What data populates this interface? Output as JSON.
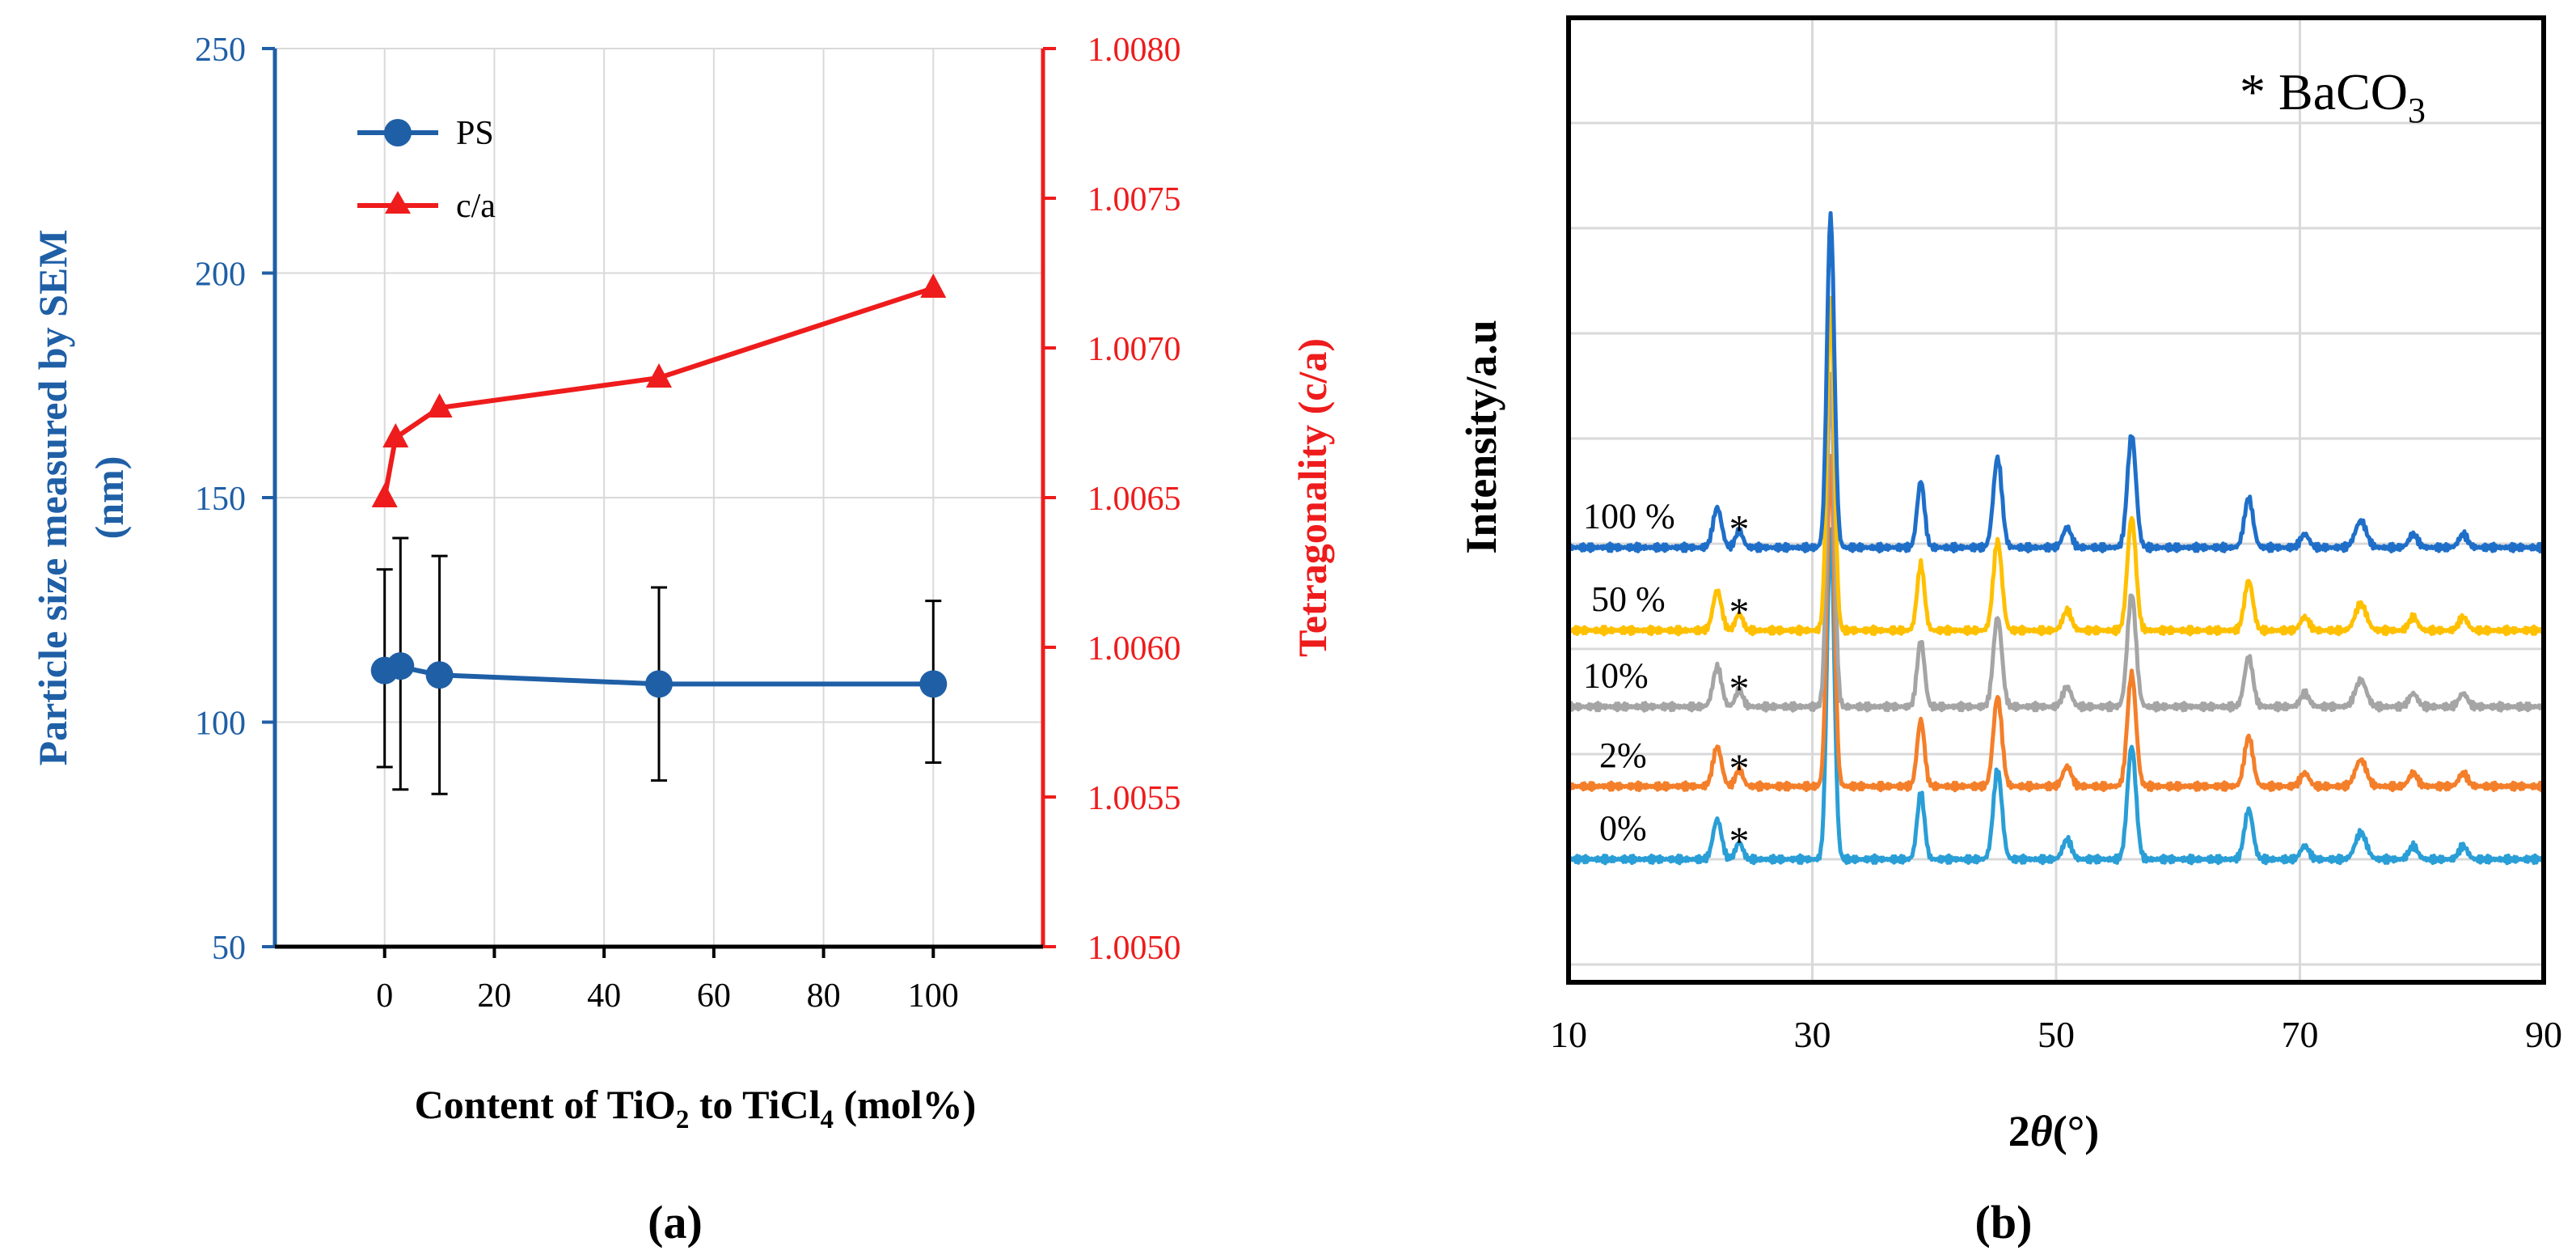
{
  "panel_a_label": "(a)",
  "panel_b_label": "(b)",
  "colors": {
    "ps": "#1F5FA6",
    "ca": "#EE1C1C",
    "err": "#000000",
    "s0": "#2A9ED6",
    "s2": "#F47F2A",
    "s10": "#A5A5A5",
    "s50": "#FFC000",
    "s100": "#1F6FC9"
  },
  "chart_data": [
    {
      "type": "line",
      "title": "",
      "xlabel": "Content of TiO2 to TiCl4 (mol%)",
      "xlabel_parts": {
        "a": "Content of TiO",
        "sub1": "2",
        "b": " to  TiCl",
        "sub2": "4",
        "c": " (mol%)"
      },
      "ylabel": [
        "Particle size measured by SEM",
        "(nm)"
      ],
      "y2label": "Tetragonality (c/a)",
      "xlim": [
        -20,
        120
      ],
      "x_ticks": [
        0,
        20,
        40,
        60,
        80,
        100
      ],
      "ylim": [
        50,
        250
      ],
      "y_ticks": [
        50,
        100,
        150,
        200,
        250
      ],
      "y2lim": [
        1.005,
        1.008
      ],
      "y2_ticks": [
        "1.0050",
        "1.0055",
        "1.0060",
        "1.0065",
        "1.0070",
        "1.0075",
        "1.0080"
      ],
      "legend": {
        "position": "top-left",
        "entries": [
          "PS",
          "c/a"
        ]
      },
      "series": [
        {
          "name": "PS",
          "axis": "left",
          "x": [
            0,
            2,
            10,
            50,
            100
          ],
          "values": [
            111.5,
            112.5,
            110.5,
            108.5,
            108.5
          ],
          "err_hi": [
            134,
            141,
            137,
            130,
            127
          ],
          "err_lo": [
            90,
            85,
            84,
            87,
            91
          ]
        },
        {
          "name": "c/a",
          "axis": "right",
          "x": [
            0,
            2,
            10,
            50,
            100
          ],
          "values": [
            1.0065,
            1.0067,
            1.0068,
            1.0069,
            1.0072
          ]
        }
      ]
    },
    {
      "type": "line",
      "title": "",
      "xlabel": "2θ(°)",
      "xlabel_parts": {
        "a": "2",
        "theta": "θ",
        "b": "(°)"
      },
      "ylabel": "Intensity/a.u",
      "xlim": [
        10,
        90
      ],
      "x_ticks": [
        10,
        30,
        50,
        70,
        90
      ],
      "annotation": {
        "a": "* BaCO",
        "sub": "3"
      },
      "peaks": [
        {
          "pos": 22.2,
          "width": 0.35,
          "rel": 0.12
        },
        {
          "pos": 24.0,
          "width": 0.3,
          "rel": 0.05
        },
        {
          "pos": 31.5,
          "width": 0.3,
          "rel": 1.0
        },
        {
          "pos": 38.9,
          "width": 0.3,
          "rel": 0.2
        },
        {
          "pos": 45.2,
          "width": 0.35,
          "rel": 0.27
        },
        {
          "pos": 50.9,
          "width": 0.35,
          "rel": 0.06
        },
        {
          "pos": 56.2,
          "width": 0.35,
          "rel": 0.34
        },
        {
          "pos": 65.8,
          "width": 0.35,
          "rel": 0.15
        },
        {
          "pos": 70.4,
          "width": 0.35,
          "rel": 0.04
        },
        {
          "pos": 75.0,
          "width": 0.45,
          "rel": 0.08
        },
        {
          "pos": 79.3,
          "width": 0.35,
          "rel": 0.04
        },
        {
          "pos": 83.4,
          "width": 0.35,
          "rel": 0.04
        }
      ],
      "series": [
        {
          "name": "0%",
          "label": "0%",
          "color_key": "s0",
          "baseline": 0.0,
          "scale": 1.0
        },
        {
          "name": "2%",
          "label": "2%",
          "color_key": "s2",
          "baseline": 0.22,
          "scale": 1.0
        },
        {
          "name": "10%",
          "label": "10%",
          "color_key": "s10",
          "baseline": 0.46,
          "scale": 1.0
        },
        {
          "name": "50 %",
          "label": "50 %",
          "color_key": "s50",
          "baseline": 0.69,
          "scale": 1.0
        },
        {
          "name": "100 %",
          "label": "100 %",
          "color_key": "s100",
          "baseline": 0.94,
          "scale": 1.0
        }
      ],
      "star_label": "*"
    }
  ]
}
